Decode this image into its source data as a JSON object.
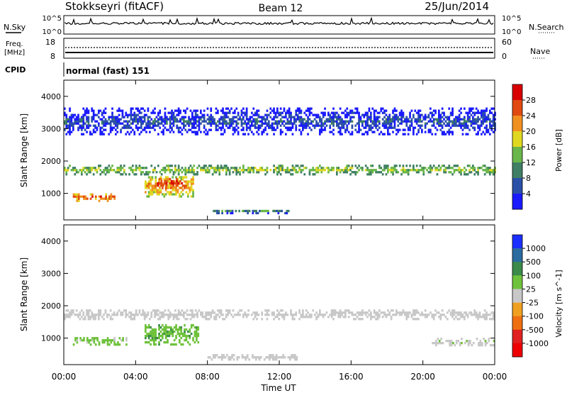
{
  "header": {
    "station": "Stokkseyri (fitACF)",
    "beam": "Beam 12",
    "date": "25/Jun/2014"
  },
  "noise_panel": {
    "left_label": "N.Sky",
    "left_ticks": [
      "10^5",
      "10^0"
    ],
    "right_ticks": [
      "10^5",
      "10^0"
    ],
    "right_label": "N.Search"
  },
  "freq_panel": {
    "label_line1": "Freq.",
    "label_line2": "[MHz]",
    "left_ticks": [
      "18",
      "8"
    ],
    "right_ticks": [
      "60",
      "0"
    ],
    "right_label": "Nave"
  },
  "cpid_panel": {
    "label": "CPID",
    "mode": "normal (fast) 151"
  },
  "x_axis": {
    "label": "Time UT",
    "ticks": [
      "00:00",
      "04:00",
      "08:00",
      "12:00",
      "16:00",
      "20:00",
      "00:00"
    ]
  },
  "colors": {
    "power": [
      "#1a1aff",
      "#2a4fa8",
      "#3f7f63",
      "#69b64a",
      "#e0d820",
      "#f09020",
      "#e04a10",
      "#d90000"
    ],
    "velocity": [
      "#1a2fff",
      "#2a6ba0",
      "#3b8a4a",
      "#6fc23c",
      "#c8c8c8",
      "#f0a020",
      "#ef6f10",
      "#e02020",
      "#ee0000"
    ]
  },
  "chart_data": [
    {
      "type": "heatmap",
      "panel": "power",
      "title": "",
      "xlabel": "",
      "ylabel": "Slant Range [km]",
      "y_ticks": [
        "1000",
        "2000",
        "3000",
        "4000"
      ],
      "ylim": [
        180,
        4500
      ],
      "xlim_hours": [
        0,
        24
      ],
      "colorbar": {
        "label": "Power [dB]",
        "ticks": [
          "4",
          "8",
          "12",
          "16",
          "20",
          "24",
          "28"
        ],
        "range": [
          0,
          30
        ]
      },
      "bands": [
        {
          "t_start": 0,
          "t_end": 24,
          "r_center": 1700,
          "r_width": 280,
          "value": 15
        },
        {
          "t_start": 0.5,
          "t_end": 2.8,
          "r_center": 850,
          "r_width": 220,
          "value": 24
        },
        {
          "t_start": 4.5,
          "t_end": 7.2,
          "r_center": 1200,
          "r_width": 650,
          "value": 21
        },
        {
          "t_start": 5.2,
          "t_end": 6.6,
          "r_center": 1300,
          "r_width": 300,
          "value": 27
        },
        {
          "t_start": 8.3,
          "t_end": 12.5,
          "r_center": 420,
          "r_width": 120,
          "value": 10
        },
        {
          "t_start": 0,
          "t_end": 24,
          "r_center": 3200,
          "r_width": 800,
          "value": 6
        }
      ]
    },
    {
      "type": "heatmap",
      "panel": "velocity",
      "title": "",
      "xlabel": "Time UT",
      "ylabel": "Slant Range [km]",
      "y_ticks": [
        "1000",
        "2000",
        "3000",
        "4000"
      ],
      "ylim": [
        180,
        4500
      ],
      "xlim_hours": [
        0,
        24
      ],
      "colorbar": {
        "label": "Velocity [m s^-1]",
        "ticks": [
          "1000",
          "500",
          "100",
          "25",
          "-25",
          "-100",
          "-500",
          "-1000"
        ],
        "range": [
          -1000,
          1000
        ]
      },
      "bands": [
        {
          "t_start": 0,
          "t_end": 24,
          "r_center": 1700,
          "r_width": 280,
          "value": 0
        },
        {
          "t_start": 0.5,
          "t_end": 3.5,
          "r_center": 900,
          "r_width": 260,
          "value": 150
        },
        {
          "t_start": 4.5,
          "t_end": 7.5,
          "r_center": 1100,
          "r_width": 650,
          "value": 300
        },
        {
          "t_start": 20.5,
          "t_end": 24,
          "r_center": 850,
          "r_width": 200,
          "value": 60
        },
        {
          "t_start": 8,
          "t_end": 13,
          "r_center": 380,
          "r_width": 140,
          "value": 0
        }
      ]
    }
  ]
}
